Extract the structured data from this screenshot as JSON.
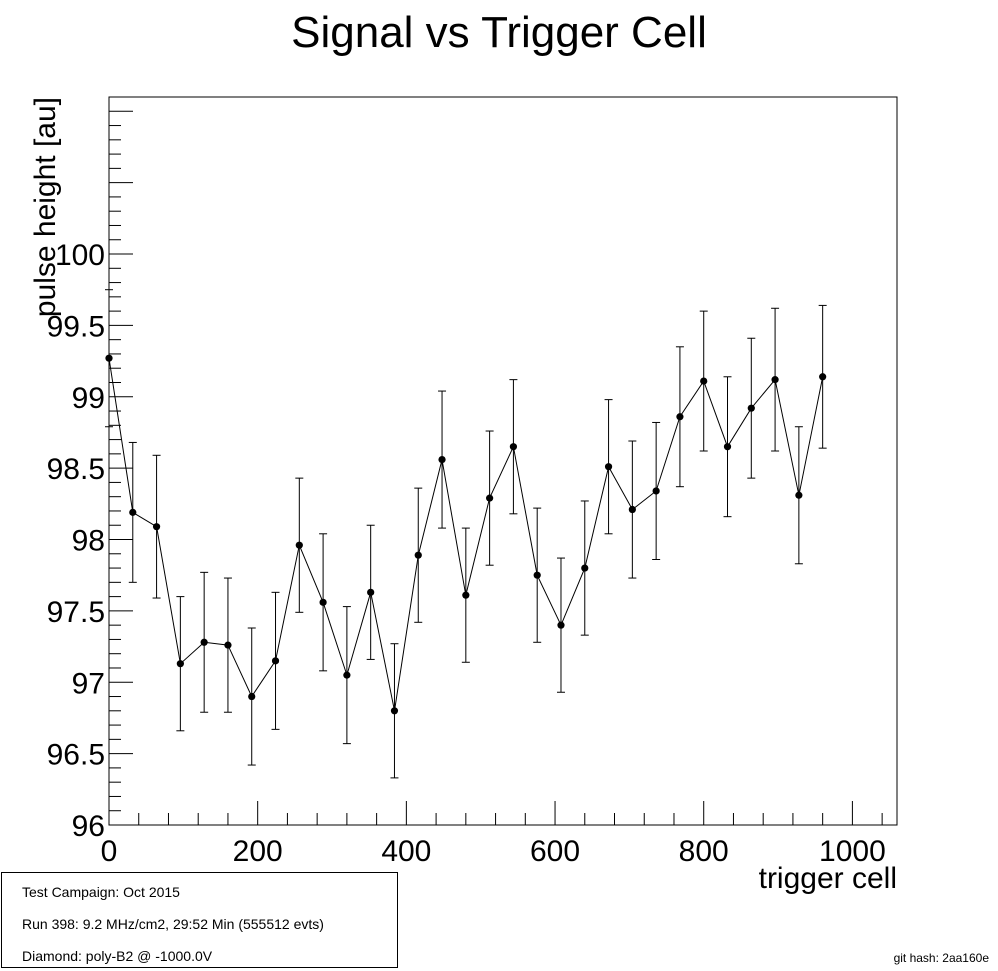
{
  "chart_data": {
    "type": "scatter",
    "title": "Signal vs Trigger Cell",
    "xlabel": "trigger cell",
    "ylabel": "pulse height [au]",
    "xlim": [
      0,
      1060
    ],
    "ylim": [
      96,
      101.1
    ],
    "x_ticks": [
      "0",
      "200",
      "400",
      "600",
      "800",
      "1000"
    ],
    "y_ticks": [
      "96",
      "96.5",
      "97",
      "97.5",
      "98",
      "98.5",
      "99",
      "99.5",
      "100"
    ],
    "grid": false,
    "legend": "none",
    "series": [
      {
        "connected": true,
        "x": [
          0,
          32,
          64,
          96,
          128,
          160,
          192,
          224,
          256,
          288,
          320,
          352,
          384,
          416,
          448,
          480,
          512,
          544,
          576,
          608,
          640,
          672,
          704,
          736,
          768,
          800,
          832,
          864,
          896,
          928,
          960
        ],
        "y": [
          99.27,
          98.19,
          98.09,
          97.13,
          97.28,
          97.26,
          96.9,
          97.15,
          97.96,
          97.56,
          97.05,
          97.63,
          96.8,
          97.89,
          98.56,
          97.61,
          98.29,
          98.65,
          97.75,
          97.4,
          97.8,
          98.51,
          98.21,
          98.34,
          98.86,
          99.11,
          98.65,
          98.92,
          99.12,
          98.31,
          99.14
        ],
        "yerr": [
          0.48,
          0.49,
          0.5,
          0.47,
          0.49,
          0.47,
          0.48,
          0.48,
          0.47,
          0.48,
          0.48,
          0.47,
          0.47,
          0.47,
          0.48,
          0.47,
          0.47,
          0.47,
          0.47,
          0.47,
          0.47,
          0.47,
          0.48,
          0.48,
          0.49,
          0.49,
          0.49,
          0.49,
          0.5,
          0.48,
          0.5
        ]
      }
    ]
  },
  "info_box": {
    "line1": "Test Campaign: Oct 2015",
    "line2": "Run 398: 9.2 MHz/cm2, 29:52 Min (555512 evts)",
    "line3": "Diamond: poly-B2 @ -1000.0V"
  },
  "footer": {
    "git_hash": "git hash: 2aa160e"
  }
}
